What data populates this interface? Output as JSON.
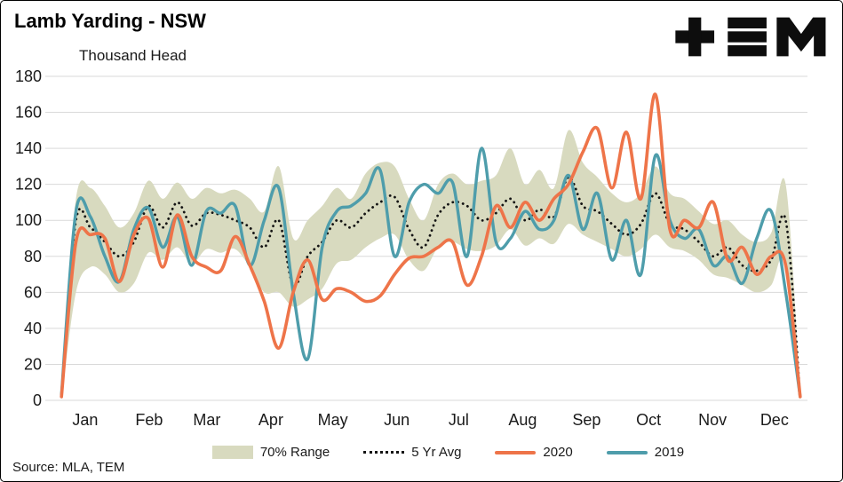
{
  "header": {
    "title": "Lamb Yarding - NSW",
    "subtitle": "Thousand Head",
    "logo_alt": "TEM"
  },
  "footer": {
    "source": "Source: MLA, TEM"
  },
  "legend": {
    "items": [
      {
        "label": "70% Range"
      },
      {
        "label": "5 Yr Avg"
      },
      {
        "label": "2020"
      },
      {
        "label": "2019"
      }
    ]
  },
  "chart_data": {
    "type": "line",
    "title": "Lamb Yarding - NSW",
    "ylabel": "Thousand Head",
    "x_unit": "weekly, Jan through Dec",
    "weeks": 52,
    "ylim": [
      0,
      180
    ],
    "y_ticks": [
      0,
      20,
      40,
      60,
      80,
      100,
      120,
      140,
      160,
      180
    ],
    "months": [
      "Jan",
      "Feb",
      "Mar",
      "Apr",
      "May",
      "Jun",
      "Jul",
      "Aug",
      "Sep",
      "Oct",
      "Nov",
      "Dec"
    ],
    "grid": true,
    "legend_position": "bottom",
    "series": [
      {
        "name": "70% Range",
        "type": "band",
        "color": "#d8dabf",
        "upper": [
          8,
          112,
          118,
          108,
          96,
          104,
          122,
          112,
          121,
          112,
          118,
          115,
          117,
          112,
          105,
          130,
          90,
          100,
          108,
          118,
          112,
          126,
          132,
          130,
          112,
          100,
          120,
          126,
          120,
          122,
          125,
          140,
          120,
          128,
          118,
          150,
          132,
          124,
          115,
          110,
          115,
          130,
          115,
          112,
          105,
          98,
          100,
          92,
          88,
          93,
          120,
          5
        ],
        "lower": [
          0,
          60,
          74,
          70,
          60,
          65,
          82,
          78,
          85,
          76,
          84,
          82,
          84,
          74,
          60,
          60,
          52,
          56,
          62,
          76,
          78,
          85,
          90,
          92,
          78,
          72,
          85,
          88,
          84,
          83,
          86,
          95,
          86,
          90,
          87,
          98,
          92,
          88,
          84,
          80,
          84,
          92,
          85,
          83,
          78,
          70,
          68,
          64,
          60,
          64,
          78,
          0
        ]
      },
      {
        "name": "5 Yr Avg",
        "type": "dotted-line",
        "color": "#141414",
        "values": [
          2,
          100,
          96,
          88,
          80,
          88,
          108,
          96,
          110,
          97,
          104,
          103,
          100,
          96,
          85,
          100,
          64,
          80,
          88,
          100,
          96,
          104,
          110,
          113,
          95,
          85,
          103,
          110,
          108,
          100,
          104,
          112,
          100,
          106,
          102,
          124,
          108,
          105,
          98,
          92,
          98,
          115,
          98,
          95,
          88,
          80,
          85,
          75,
          72,
          78,
          100,
          2
        ]
      },
      {
        "name": "2020",
        "type": "line",
        "color": "#ee7449",
        "values": [
          2,
          88,
          92,
          90,
          66,
          92,
          101,
          74,
          103,
          80,
          74,
          72,
          91,
          75,
          55,
          29,
          60,
          78,
          56,
          62,
          60,
          55,
          58,
          70,
          79,
          80,
          85,
          88,
          64,
          80,
          108,
          96,
          110,
          100,
          112,
          120,
          138,
          151,
          118,
          149,
          112,
          170,
          95,
          100,
          96,
          110,
          78,
          85,
          70,
          80,
          75,
          2
        ]
      },
      {
        "name": "2019",
        "type": "line",
        "color": "#4e9dab",
        "values": [
          3,
          105,
          102,
          80,
          66,
          95,
          107,
          85,
          102,
          75,
          105,
          104,
          108,
          75,
          100,
          118,
          60,
          23,
          85,
          105,
          108,
          115,
          128,
          80,
          110,
          120,
          115,
          121,
          80,
          140,
          88,
          90,
          105,
          95,
          100,
          125,
          95,
          115,
          78,
          100,
          70,
          136,
          100,
          90,
          95,
          75,
          80,
          65,
          90,
          105,
          60,
          2
        ]
      }
    ]
  }
}
